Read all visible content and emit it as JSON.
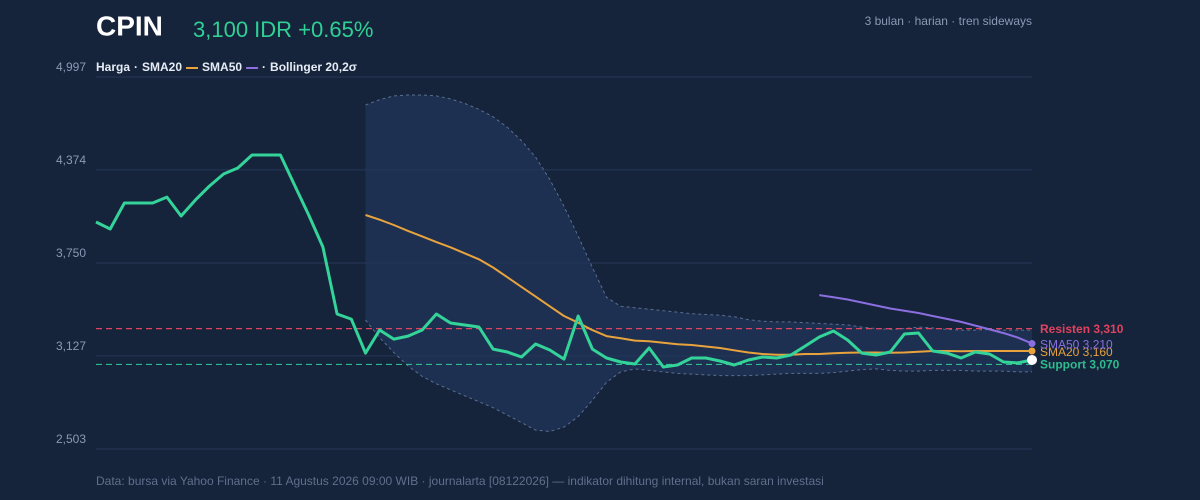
{
  "chart_data": {
    "type": "line",
    "title": "CPIN",
    "subtitle": "3,100 IDR +0.65%",
    "subtitle_color": "#2fd095",
    "note": "3 bulan · harian · tren sideways",
    "footer": "Data: bursa via Yahoo Finance · 11 Agustus 2026 09:00 WIB · journalarta [08122026] — indikator dihitung internal, bukan saran investasi",
    "legend_separator": "·",
    "ylim": [
      2503,
      4997
    ],
    "yticks": [
      {
        "value": 2503,
        "label": "2,503"
      },
      {
        "value": 3127,
        "label": "3,127"
      },
      {
        "value": 3750,
        "label": "3,750"
      },
      {
        "value": 4374,
        "label": "4,374"
      },
      {
        "value": 4997,
        "label": "4,997"
      }
    ],
    "grid": true,
    "series": [
      {
        "name": "Harga",
        "color": "#34d399",
        "end_dot": "#ffffff",
        "values": [
          4025,
          3978,
          4152,
          4152,
          4152,
          4192,
          4065,
          4172,
          4266,
          4347,
          4387,
          4474,
          4474,
          4474,
          4273,
          4072,
          3857,
          3408,
          3374,
          3146,
          3301,
          3240,
          3260,
          3301,
          3408,
          3348,
          3334,
          3321,
          3173,
          3153,
          3120,
          3207,
          3167,
          3106,
          3395,
          3173,
          3113,
          3086,
          3073,
          3180,
          3053,
          3066,
          3113,
          3113,
          3093,
          3066,
          3100,
          3120,
          3113,
          3133,
          3193,
          3254,
          3294,
          3234,
          3146,
          3133,
          3153,
          3274,
          3281,
          3160,
          3146,
          3113,
          3153,
          3140,
          3086,
          3080,
          3100
        ]
      },
      {
        "name": "SMA20",
        "color": "#e8a33d",
        "end_label": "SMA20 3,160",
        "values": [
          null,
          null,
          null,
          null,
          null,
          null,
          null,
          null,
          null,
          null,
          null,
          null,
          null,
          null,
          null,
          null,
          null,
          null,
          null,
          4072,
          4040,
          4005,
          3965,
          3928,
          3890,
          3855,
          3815,
          3775,
          3720,
          3655,
          3590,
          3525,
          3460,
          3395,
          3350,
          3300,
          3260,
          3245,
          3230,
          3225,
          3215,
          3205,
          3200,
          3190,
          3180,
          3165,
          3150,
          3140,
          3135,
          3135,
          3140,
          3140,
          3145,
          3148,
          3150,
          3150,
          3148,
          3150,
          3155,
          3160,
          3160,
          3158,
          3160,
          3160,
          3160,
          3160,
          3160
        ]
      },
      {
        "name": "SMA50",
        "color": "#8b6fe0",
        "end_label": "SMA50 3,210",
        "values": [
          null,
          null,
          null,
          null,
          null,
          null,
          null,
          null,
          null,
          null,
          null,
          null,
          null,
          null,
          null,
          null,
          null,
          null,
          null,
          null,
          null,
          null,
          null,
          null,
          null,
          null,
          null,
          null,
          null,
          null,
          null,
          null,
          null,
          null,
          null,
          null,
          null,
          null,
          null,
          null,
          null,
          null,
          null,
          null,
          null,
          null,
          null,
          null,
          null,
          null,
          null,
          3535,
          3520,
          3505,
          3485,
          3465,
          3445,
          3430,
          3415,
          3395,
          3375,
          3355,
          3330,
          3305,
          3280,
          3250,
          3210
        ]
      }
    ],
    "band": {
      "name": "Bollinger 20,2σ",
      "color": "#5a6f90",
      "upper": [
        null,
        null,
        null,
        null,
        null,
        null,
        null,
        null,
        null,
        null,
        null,
        null,
        null,
        null,
        null,
        null,
        null,
        null,
        null,
        4809,
        4845,
        4870,
        4876,
        4876,
        4870,
        4850,
        4820,
        4780,
        4730,
        4660,
        4570,
        4460,
        4310,
        4130,
        3930,
        3720,
        3520,
        3460,
        3450,
        3440,
        3430,
        3420,
        3410,
        3405,
        3400,
        3390,
        3370,
        3360,
        3355,
        3355,
        3350,
        3345,
        3340,
        3335,
        3320,
        3310,
        3305,
        3310,
        3320,
        3315,
        3305,
        3300,
        3300,
        3305,
        3300,
        3300,
        3300
      ],
      "lower": [
        null,
        null,
        null,
        null,
        null,
        null,
        null,
        null,
        null,
        null,
        null,
        null,
        null,
        null,
        null,
        null,
        null,
        null,
        null,
        3368,
        3250,
        3150,
        3060,
        2990,
        2940,
        2900,
        2860,
        2820,
        2780,
        2730,
        2680,
        2630,
        2620,
        2650,
        2720,
        2830,
        2950,
        3020,
        3040,
        3030,
        3020,
        3010,
        3005,
        3000,
        2995,
        2995,
        2995,
        3000,
        3005,
        3010,
        3010,
        3010,
        3015,
        3025,
        3035,
        3040,
        3030,
        3025,
        3025,
        3030,
        3030,
        3030,
        3025,
        3025,
        3025,
        3020,
        3020
      ]
    },
    "levels": [
      {
        "value": 3310,
        "label": "Resisten 3,310",
        "color": "#e0435f"
      },
      {
        "value": 3070,
        "label": "Support 3,070",
        "color": "#2ebc8f"
      }
    ]
  }
}
